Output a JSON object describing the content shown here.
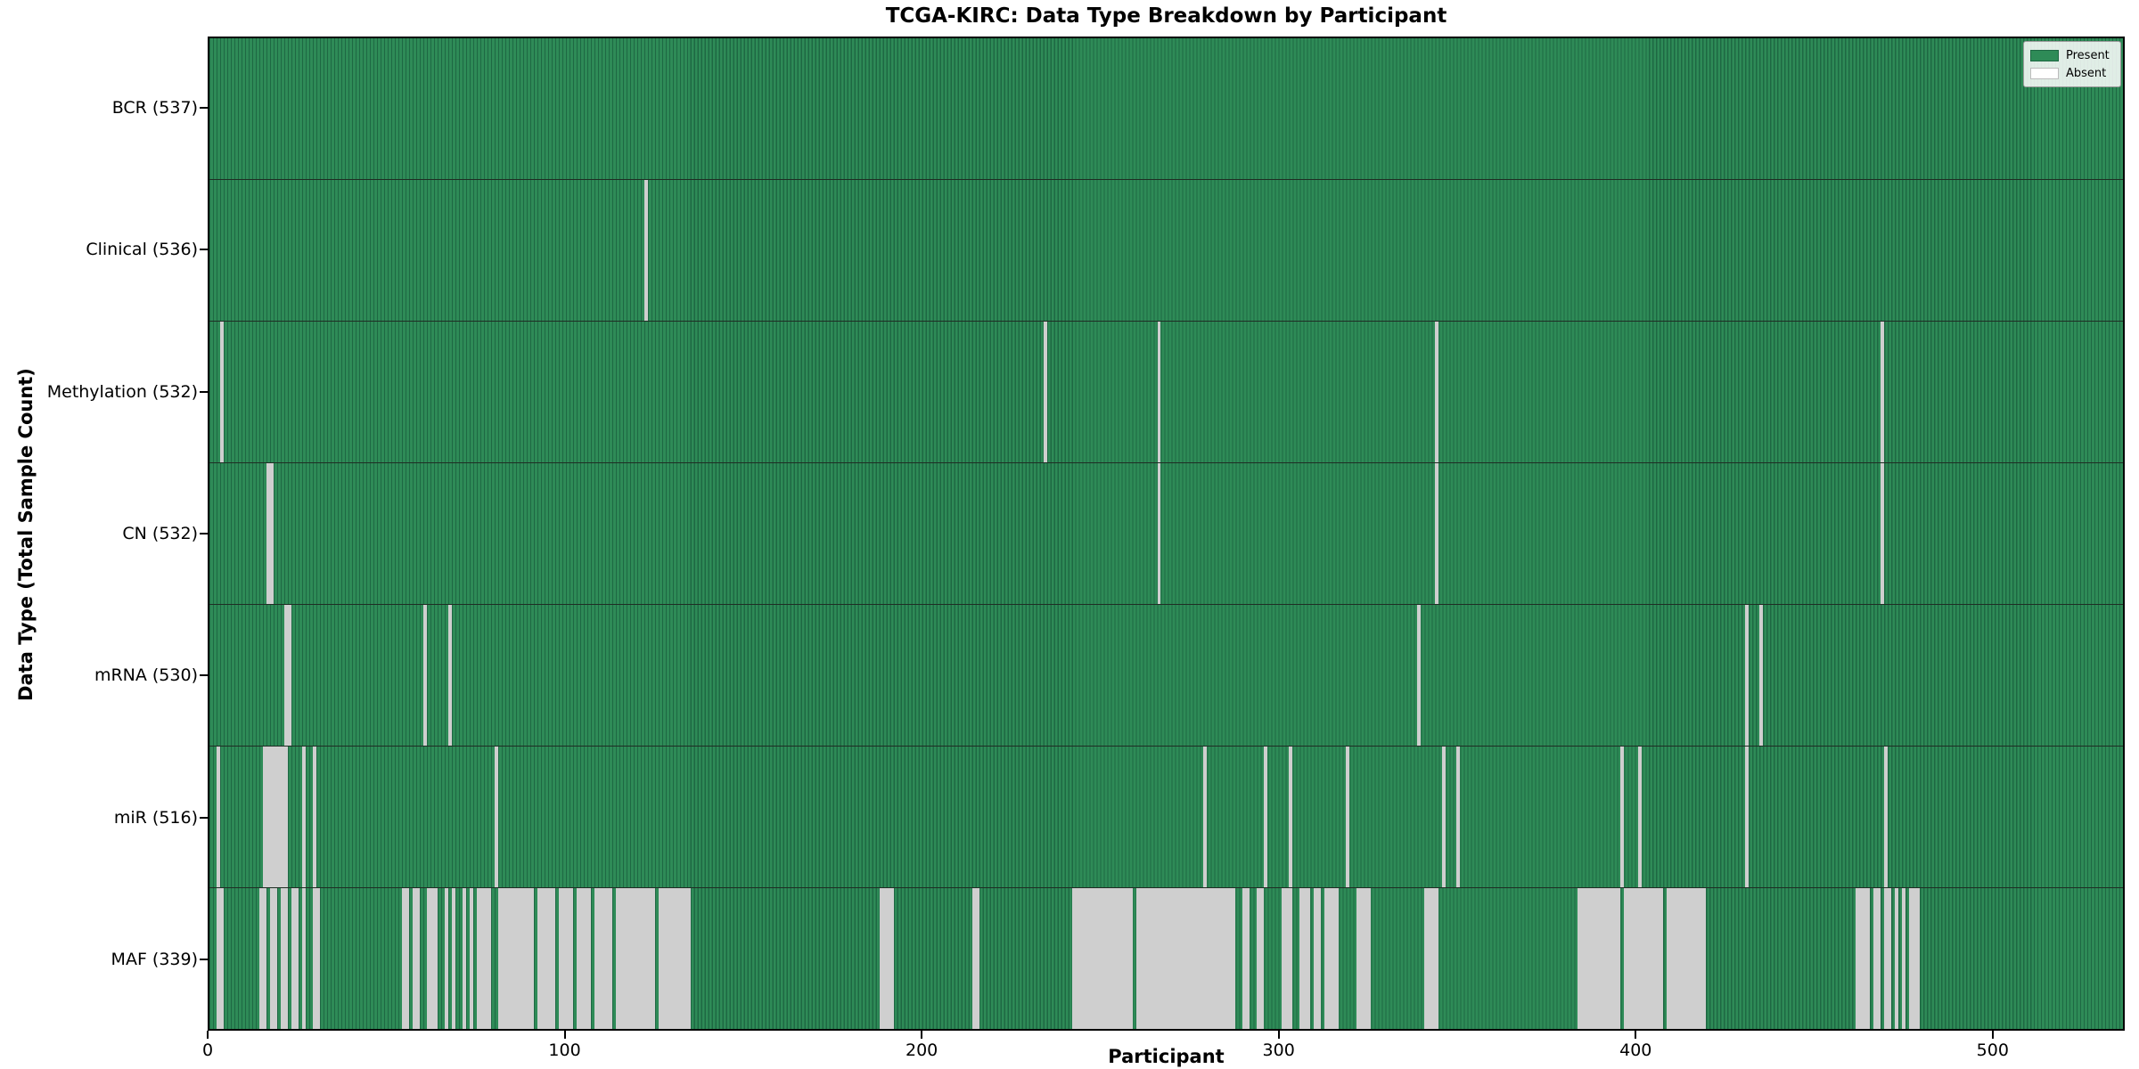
{
  "title": "TCGA-KIRC: Data Type Breakdown by Participant",
  "xlabel": "Participant",
  "ylabel": "Data Type (Total Sample Count)",
  "legend": {
    "present_label": "Present",
    "absent_label": "Absent"
  },
  "colors": {
    "present": "#2e8b57",
    "present_edge": "#1e6843",
    "absent": "#ffffff",
    "absent_edge": "#cfcfcf"
  },
  "chart_data": {
    "type": "heatmap",
    "orientation": "rows-are-data-types",
    "n_participants": 537,
    "x_range": [
      0,
      537
    ],
    "x_ticks": [
      0,
      100,
      200,
      300,
      400,
      500
    ],
    "grid": false,
    "legend_position": "upper right",
    "cell_values": "present=1 (green), absent=0 (white)",
    "rows": [
      {
        "name": "BCR",
        "label": "BCR (537)",
        "present_count": 537,
        "absent_count": 0,
        "absent_ranges": []
      },
      {
        "name": "Clinical",
        "label": "Clinical (536)",
        "present_count": 536,
        "absent_count": 1,
        "absent_ranges": [
          [
            122,
            122
          ]
        ]
      },
      {
        "name": "Methylation",
        "label": "Methylation (532)",
        "present_count": 532,
        "absent_count": 5,
        "absent_ranges": [
          [
            3,
            3
          ],
          [
            234,
            234
          ],
          [
            266,
            266
          ],
          [
            344,
            344
          ],
          [
            469,
            469
          ]
        ]
      },
      {
        "name": "CN",
        "label": "CN (532)",
        "present_count": 532,
        "absent_count": 5,
        "absent_ranges": [
          [
            16,
            17
          ],
          [
            266,
            266
          ],
          [
            344,
            344
          ],
          [
            469,
            469
          ]
        ]
      },
      {
        "name": "mRNA",
        "label": "mRNA (530)",
        "present_count": 530,
        "absent_count": 7,
        "absent_ranges": [
          [
            21,
            22
          ],
          [
            60,
            60
          ],
          [
            67,
            67
          ],
          [
            339,
            339
          ],
          [
            431,
            431
          ],
          [
            435,
            435
          ]
        ]
      },
      {
        "name": "miR",
        "label": "miR (516)",
        "present_count": 516,
        "absent_count": 21,
        "absent_ranges": [
          [
            2,
            2
          ],
          [
            15,
            21
          ],
          [
            26,
            26
          ],
          [
            29,
            29
          ],
          [
            80,
            80
          ],
          [
            279,
            279
          ],
          [
            296,
            296
          ],
          [
            303,
            303
          ],
          [
            319,
            319
          ],
          [
            346,
            346
          ],
          [
            350,
            350
          ],
          [
            396,
            396
          ],
          [
            401,
            401
          ],
          [
            431,
            431
          ],
          [
            470,
            470
          ]
        ]
      },
      {
        "name": "MAF",
        "label": "MAF (339)",
        "present_count": 339,
        "absent_count": 198,
        "absent_ranges": [
          [
            2,
            3
          ],
          [
            14,
            15
          ],
          [
            17,
            18
          ],
          [
            20,
            21
          ],
          [
            23,
            24
          ],
          [
            26,
            26
          ],
          [
            29,
            30
          ],
          [
            54,
            55
          ],
          [
            57,
            58
          ],
          [
            61,
            63
          ],
          [
            66,
            66
          ],
          [
            68,
            68
          ],
          [
            71,
            71
          ],
          [
            73,
            73
          ],
          [
            75,
            78
          ],
          [
            81,
            90
          ],
          [
            92,
            96
          ],
          [
            98,
            101
          ],
          [
            103,
            106
          ],
          [
            108,
            112
          ],
          [
            114,
            124
          ],
          [
            126,
            134
          ],
          [
            188,
            191
          ],
          [
            214,
            215
          ],
          [
            242,
            258
          ],
          [
            260,
            287
          ],
          [
            290,
            291
          ],
          [
            294,
            295
          ],
          [
            301,
            303
          ],
          [
            306,
            308
          ],
          [
            310,
            311
          ],
          [
            313,
            316
          ],
          [
            322,
            325
          ],
          [
            341,
            344
          ],
          [
            384,
            395
          ],
          [
            397,
            407
          ],
          [
            409,
            419
          ],
          [
            462,
            465
          ],
          [
            467,
            468
          ],
          [
            470,
            471
          ],
          [
            473,
            473
          ],
          [
            475,
            475
          ],
          [
            477,
            479
          ]
        ]
      }
    ]
  }
}
